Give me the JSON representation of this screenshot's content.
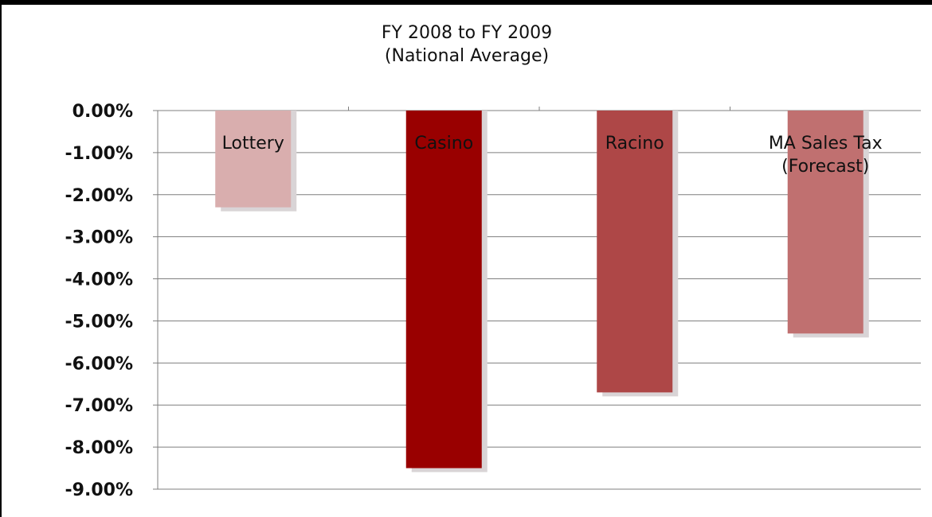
{
  "chart_data": {
    "type": "bar",
    "title": [
      "FY 2008 to FY 2009",
      "(National Average)"
    ],
    "xlabel": "",
    "ylabel": "",
    "categories": [
      [
        "Lottery"
      ],
      [
        "Casino"
      ],
      [
        "Racino"
      ],
      [
        "MA Sales Tax",
        "(Forecast)"
      ]
    ],
    "values": [
      -2.3,
      -8.5,
      -6.7,
      -5.3
    ],
    "ylim": [
      -9,
      0
    ],
    "yticks": [
      "0.00%",
      "-1.00%",
      "-2.00%",
      "-3.00%",
      "-4.00%",
      "-5.00%",
      "-6.00%",
      "-7.00%",
      "-8.00%",
      "-9.00%"
    ],
    "bar_colors": [
      "#d9aeae",
      "#990000",
      "#ae4747",
      "#c07070"
    ],
    "shadow_color": "#d9d4d6",
    "grid": true,
    "legend": "none"
  }
}
